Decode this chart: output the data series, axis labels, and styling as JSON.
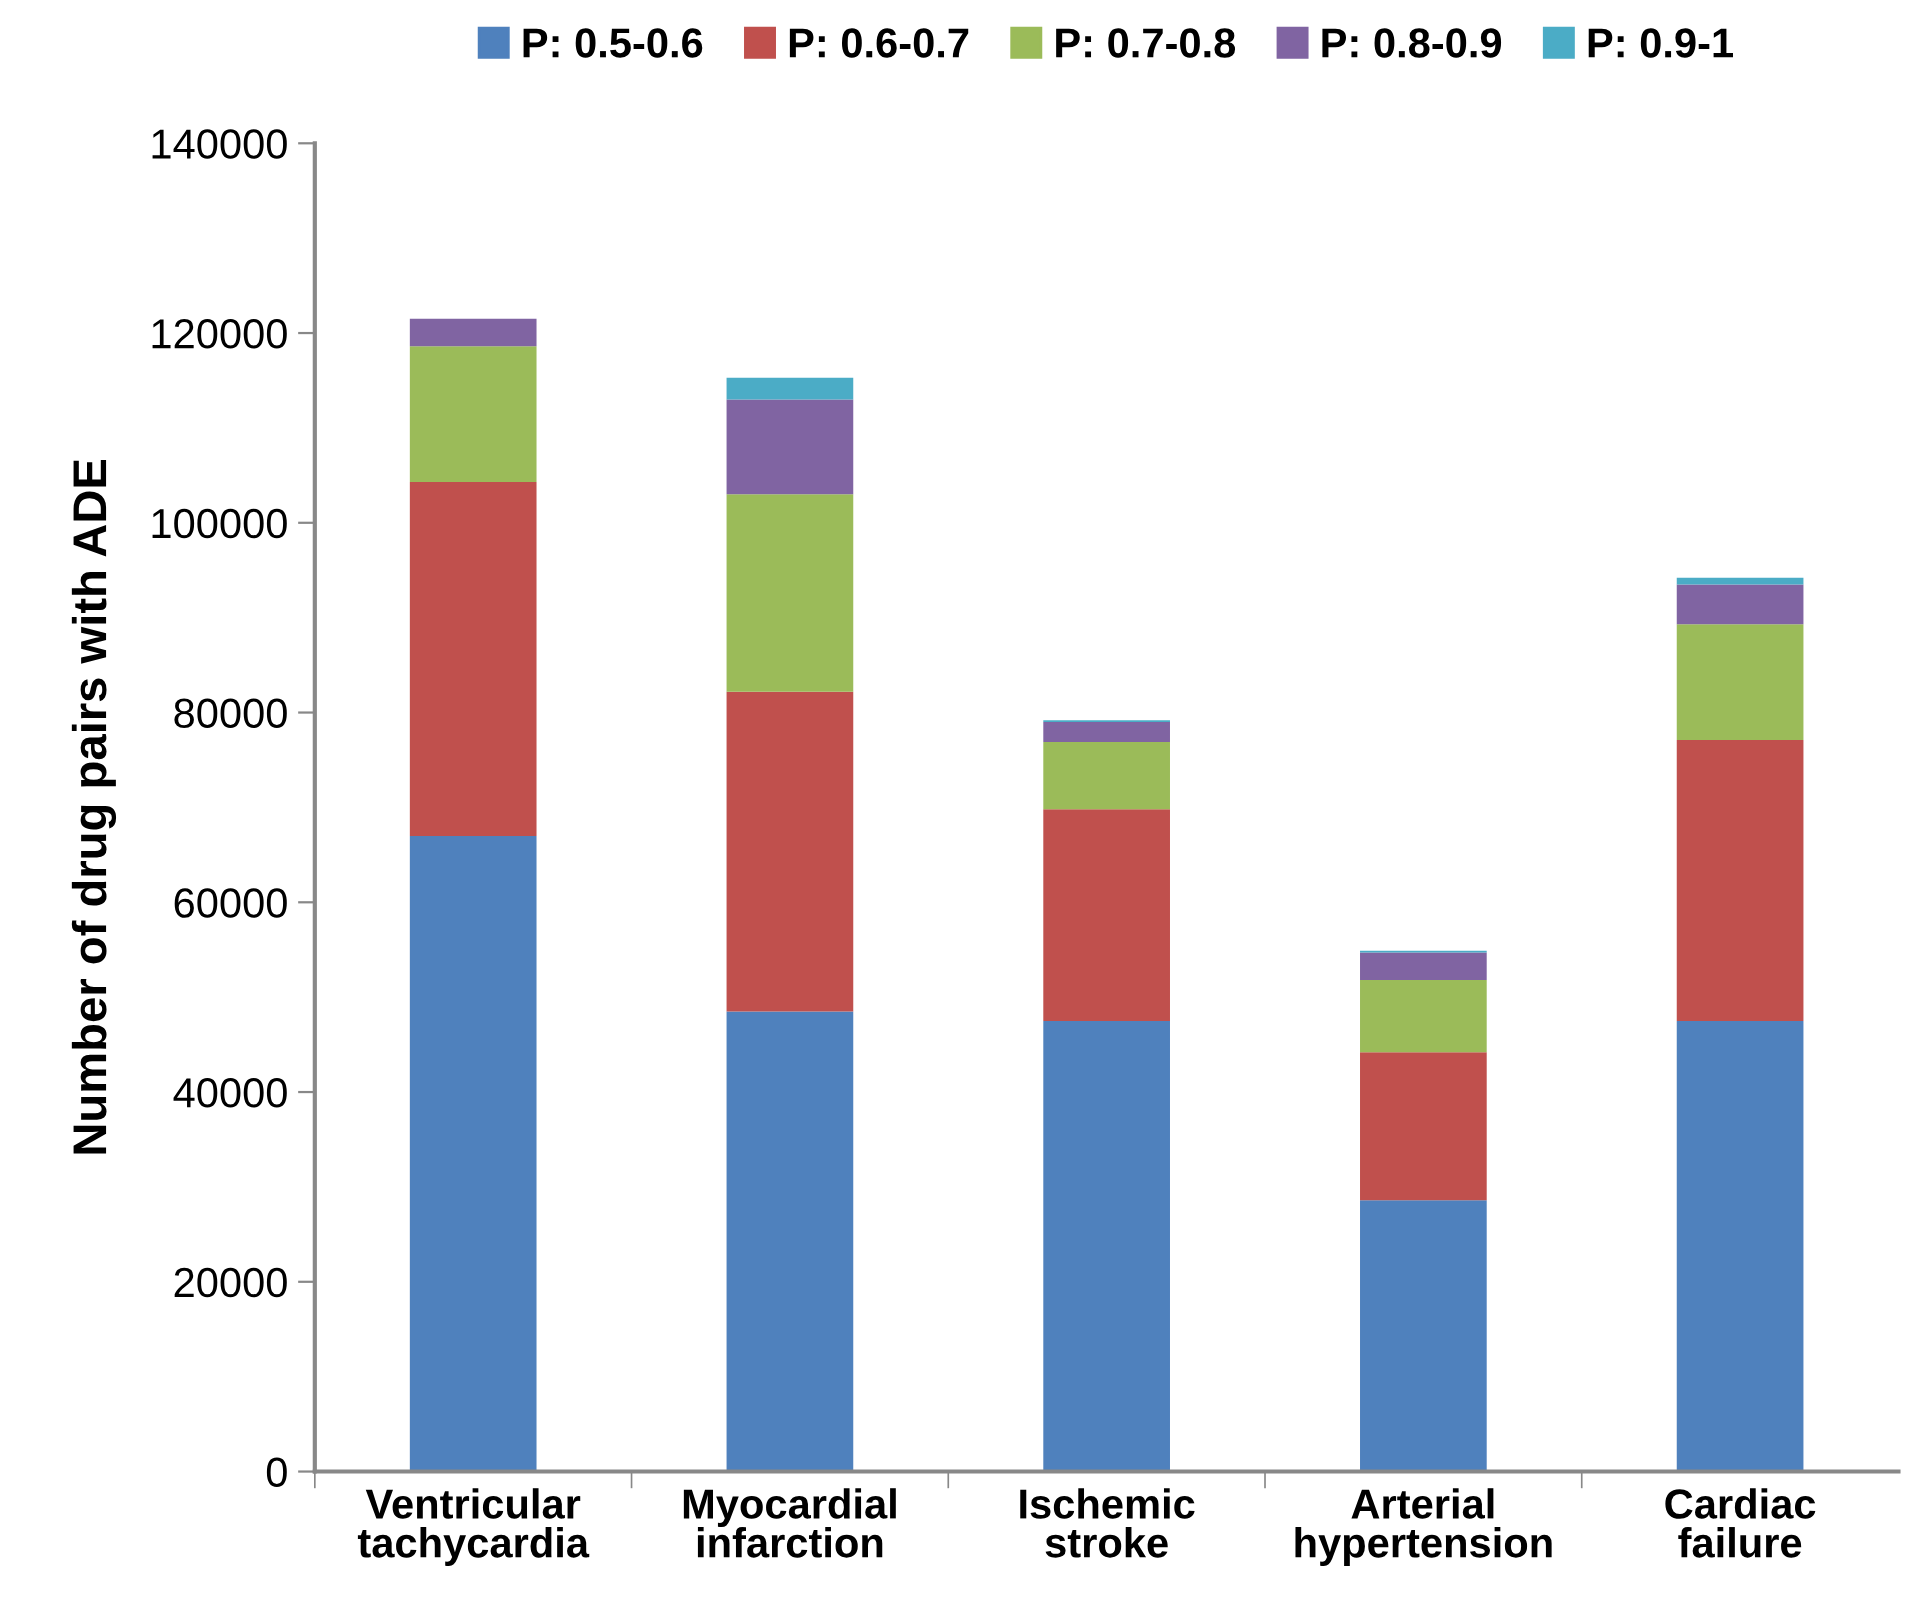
{
  "chart_data": {
    "type": "bar",
    "stacked": true,
    "ylabel": "Number of drug pairs with ADE",
    "categories": [
      "Ventricular\ntachycardia",
      "Myocardial\ninfarction",
      "Ischemic\nstroke",
      "Arterial\nhypertension",
      "Cardiac\nfailure"
    ],
    "series": [
      {
        "name": "P: 0.5-0.6",
        "color": "#4f81bd",
        "values": [
          67000,
          48500,
          47500,
          28600,
          47500
        ]
      },
      {
        "name": "P: 0.6-0.7",
        "color": "#c0504d",
        "values": [
          37300,
          33700,
          22300,
          15600,
          29600
        ]
      },
      {
        "name": "P: 0.7-0.8",
        "color": "#9bbb59",
        "values": [
          14300,
          20800,
          7100,
          7600,
          12200
        ]
      },
      {
        "name": "P: 0.8-0.9",
        "color": "#8064a2",
        "values": [
          2900,
          10000,
          2100,
          2900,
          4200
        ]
      },
      {
        "name": "P: 0.9-1",
        "color": "#4bacc6",
        "values": [
          0,
          2300,
          200,
          200,
          700
        ]
      }
    ],
    "ylim": [
      0,
      140000
    ],
    "yticks": [
      0,
      20000,
      40000,
      60000,
      80000,
      100000,
      120000,
      140000
    ],
    "grid": false,
    "legend": "top"
  }
}
